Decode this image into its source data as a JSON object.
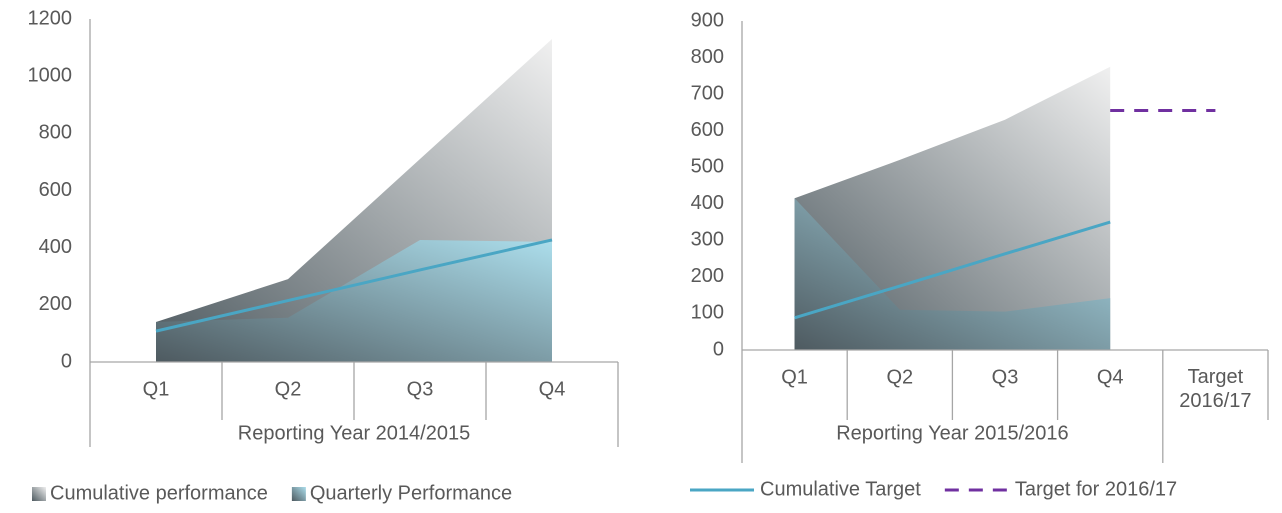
{
  "chart_data": [
    {
      "type": "area",
      "categories": [
        "Q1",
        "Q2",
        "Q3",
        "Q4"
      ],
      "group_label": "Reporting Year 2014/2015",
      "ylim": [
        0,
        1200
      ],
      "yticks": [
        0,
        200,
        400,
        600,
        800,
        1000,
        1200
      ],
      "series": [
        {
          "name": "Cumulative performance",
          "kind": "area",
          "color": "#f0f0f0",
          "values": [
            140,
            290,
            710,
            1130
          ]
        },
        {
          "name": "Quarterly Performance",
          "kind": "area",
          "color": "#acdeec",
          "values": [
            140,
            155,
            427,
            420
          ]
        },
        {
          "kind": "line",
          "color": "#4aa6c4",
          "values": [
            108,
            215,
            322,
            427
          ]
        }
      ]
    },
    {
      "type": "area",
      "categories": [
        "Q1",
        "Q2",
        "Q3",
        "Q4",
        "Target 2016/17"
      ],
      "group_label": "Reporting Year 2015/2016",
      "ylim": [
        0,
        900
      ],
      "yticks": [
        0,
        100,
        200,
        300,
        400,
        500,
        600,
        700,
        800,
        900
      ],
      "series": [
        {
          "kind": "area",
          "color": "#f0f0f0",
          "values": [
            415,
            520,
            630,
            775,
            null
          ]
        },
        {
          "kind": "area",
          "color": "#acdeec",
          "values": [
            415,
            110,
            105,
            142,
            null
          ]
        },
        {
          "name": "Cumulative Target",
          "kind": "line",
          "color": "#4aa6c4",
          "values": [
            88,
            175,
            263,
            350,
            null
          ]
        },
        {
          "name": "Target for 2016/17",
          "kind": "line",
          "dashed": true,
          "color": "#7030a0",
          "values": [
            null,
            null,
            null,
            655,
            655
          ]
        }
      ]
    }
  ]
}
